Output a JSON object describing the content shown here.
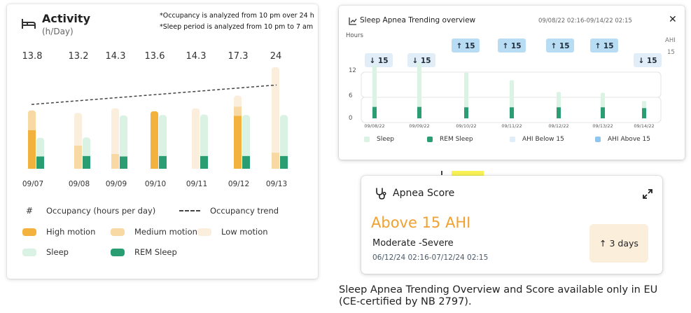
{
  "activity": {
    "title": "Activity",
    "unit": "(h/Day)",
    "notes": [
      "*Occupancy is analyzed from 10 pm over 24 h",
      "*Sleep period is analyzed from 10 pm to 7 am"
    ],
    "legend": {
      "occupancy": "Occupancy (hours per day)",
      "occupancy_symbol": "#",
      "trend": "Occupancy trend",
      "high": "High motion",
      "medium": "Medium motion",
      "low": "Low motion",
      "sleep": "Sleep",
      "rem": "REM Sleep"
    },
    "colors": {
      "high": "#f3b23e",
      "medium": "#f8d9a3",
      "low": "#fbeedd",
      "sleep": "#d9f2e3",
      "rem": "#2a9d72",
      "trend": "#444444"
    }
  },
  "chart_data": [
    {
      "type": "bar",
      "categories": [
        "09/07",
        "09/08",
        "09/09",
        "09/10",
        "09/11",
        "09/12",
        "09/13"
      ],
      "occupancy_values": [
        "13.8",
        "13.2",
        "14.3",
        "13.6",
        "14.3",
        "17.3",
        "24"
      ],
      "series": [
        {
          "name": "High motion",
          "values": [
            9.1,
            0,
            0,
            13.6,
            0,
            12.5,
            0
          ]
        },
        {
          "name": "Medium motion",
          "values": [
            4.7,
            5.5,
            3.5,
            0,
            0,
            2.2,
            3.8
          ]
        },
        {
          "name": "Low motion",
          "values": [
            0,
            7.7,
            10.8,
            0,
            14.3,
            2.6,
            20.2
          ]
        },
        {
          "name": "Sleep",
          "values": [
            7.3,
            7.4,
            12.6,
            12.7,
            12.8,
            12.7,
            12.7
          ]
        },
        {
          "name": "REM Sleep",
          "values": [
            2.9,
            3.0,
            2.9,
            3.0,
            3.0,
            3.0,
            3.0
          ]
        }
      ],
      "trend": {
        "name": "Occupancy trend",
        "start": 15.2,
        "end": 19.8
      },
      "ylim": [
        0,
        24
      ]
    },
    {
      "type": "bar",
      "title": "Sleep Apnea Trending overview",
      "date_range": "09/08/22 02:16-09/14/22 02:15",
      "ylabel": "Hours",
      "y_ticks": [
        "12",
        "6",
        "0"
      ],
      "right_label": "AHI",
      "right_value": "15",
      "categories": [
        "09/08/22",
        "09/09/22",
        "09/10/22",
        "09/11/22",
        "09/12/22",
        "09/13/22",
        "09/14/22"
      ],
      "series": [
        {
          "name": "Sleep",
          "values": [
            13.5,
            14.2,
            11.6,
            9.7,
            6.7,
            6.5,
            4.4
          ]
        },
        {
          "name": "REM Sleep",
          "values": [
            2.9,
            2.9,
            2.8,
            2.8,
            2.8,
            2.8,
            2.6
          ]
        }
      ],
      "ahi_markers": [
        {
          "label": "↓ 15",
          "level": "below"
        },
        {
          "label": "↓ 15",
          "level": "below"
        },
        {
          "label": "↑ 15",
          "level": "above"
        },
        {
          "label": "↑ 15",
          "level": "above"
        },
        {
          "label": "↑ 15",
          "level": "above"
        },
        {
          "label": "↑ 15",
          "level": "above"
        },
        {
          "label": "↓ 15",
          "level": "below"
        }
      ],
      "legend": [
        "Sleep",
        "REM Sleep",
        "AHI Below 15",
        "AHI Above 15"
      ],
      "colors": {
        "sleep": "#daf3e4",
        "rem": "#2a9d72",
        "below": "#e1eef8",
        "above": "#b9dcf5"
      },
      "ylim": [
        0,
        16
      ]
    }
  ],
  "score": {
    "title": "Apnea Score",
    "value": "Above 15 AHI",
    "severity": "Moderate -Severe",
    "range": "06/12/24 02:16-07/12/24 02:15",
    "trend": "↑ 3 days"
  },
  "caption": "Sleep Apnea Trending Overview and Score available only in EU (CE-certified by NB 2797)."
}
